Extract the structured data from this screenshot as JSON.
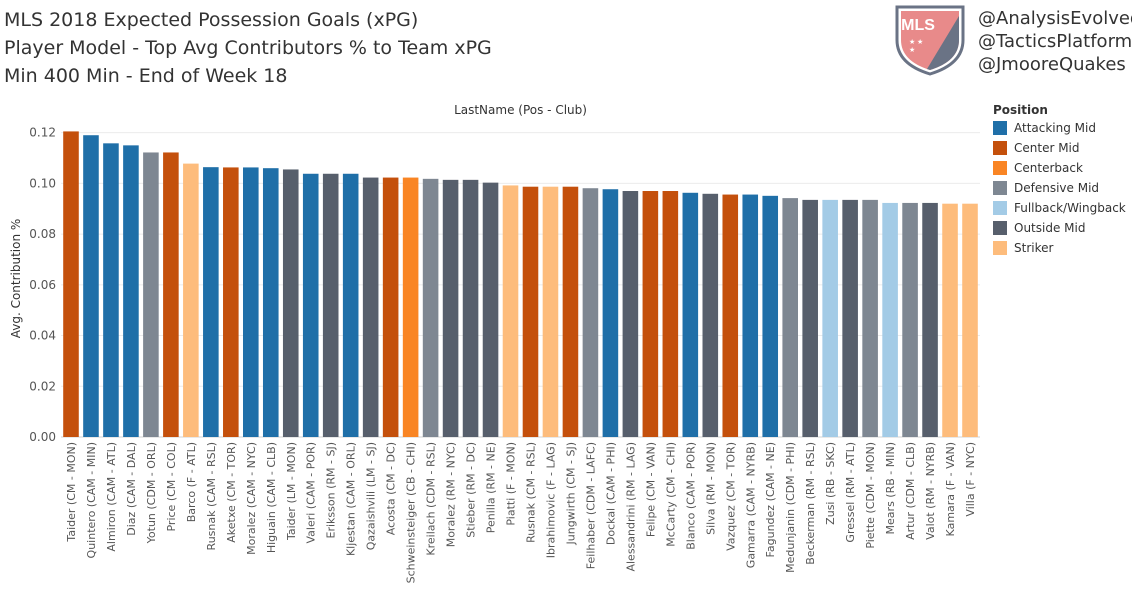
{
  "header": {
    "title_lines": [
      "MLS 2018 Expected Possession Goals (xPG)",
      "Player Model - Top Avg Contributors % to Team xPG",
      "Min 400 Min - End of Week 18"
    ],
    "handles": [
      "@AnalysisEvolved",
      "@TacticsPlatform",
      "@JmooreQuakes"
    ],
    "logo_text": "MLS"
  },
  "legend": {
    "title": "Position",
    "items": [
      {
        "label": "Attacking Mid",
        "color": "#1f6fa8"
      },
      {
        "label": "Center Mid",
        "color": "#c4500c"
      },
      {
        "label": "Centerback",
        "color": "#f98524"
      },
      {
        "label": "Defensive Mid",
        "color": "#7e8792"
      },
      {
        "label": "Fullback/Wingback",
        "color": "#a3cbe6"
      },
      {
        "label": "Outside Mid",
        "color": "#575f6c"
      },
      {
        "label": "Striker",
        "color": "#fdbc7c"
      }
    ]
  },
  "chart_data": {
    "type": "bar",
    "title": "LastName (Pos - Club)",
    "xlabel": "",
    "ylabel": "Avg. Contribution %",
    "ylim": [
      0,
      0.125
    ],
    "yticks": [
      "0.00",
      "0.02",
      "0.04",
      "0.06",
      "0.08",
      "0.10",
      "0.12"
    ],
    "categories": [
      "Taider (CM - MON)",
      "Quintero (CAM - MIN)",
      "Almiron (CAM - ATL)",
      "Diaz (CAM - DAL)",
      "Yotun (CDM - ORL)",
      "Price (CM - COL)",
      "Barco (F - ATL)",
      "Rusnak (CAM - RSL)",
      "Aketxe (CM - TOR)",
      "Moralez (CAM - NYC)",
      "Higuain (CAM - CLB)",
      "Taider (LM - MON)",
      "Valeri (CAM - POR)",
      "Eriksson (RM - SJ)",
      "Kljestan (CAM - ORL)",
      "Qazaishvili (LM - SJ)",
      "Acosta (CM - DC)",
      "Schweinsteiger (CB - CHI)",
      "Kreilach (CDM - RSL)",
      "Moralez (RM - NYC)",
      "Stieber (RM - DC)",
      "Penilla (RM - NE)",
      "Piatti (F - MON)",
      "Rusnak (CM - RSL)",
      "Ibrahimovic (F - LAG)",
      "Jungwirth (CM - SJ)",
      "Feilhaber (CDM - LAFC)",
      "Dockal (CAM - PHI)",
      "Alessandrini (RM - LAG)",
      "Felipe (CM - VAN)",
      "McCarty (CM - CHI)",
      "Blanco (CAM - POR)",
      "Silva (RM - MON)",
      "Vazquez (CM - TOR)",
      "Gamarra (CAM - NYRB)",
      "Fagundez (CAM - NE)",
      "Medunjanin (CDM - PHI)",
      "Beckerman (RM - RSL)",
      "Zusi (RB - SKC)",
      "Gressel (RM - ATL)",
      "Piette (CDM - MON)",
      "Mears (RB - MIN)",
      "Artur (CDM - CLB)",
      "Valot (RM - NYRB)",
      "Kamara (F - VAN)",
      "Villa (F - NYC)"
    ],
    "values": [
      0.1205,
      0.119,
      0.1158,
      0.115,
      0.1122,
      0.1122,
      0.1078,
      0.1064,
      0.1063,
      0.1063,
      0.106,
      0.1055,
      0.1038,
      0.1038,
      0.1038,
      0.1023,
      0.1023,
      0.1023,
      0.1018,
      0.1014,
      0.1014,
      0.1003,
      0.0992,
      0.0987,
      0.0987,
      0.0987,
      0.0981,
      0.0977,
      0.097,
      0.097,
      0.097,
      0.0963,
      0.0959,
      0.0956,
      0.0956,
      0.0951,
      0.0942,
      0.0935,
      0.0935,
      0.0935,
      0.0935,
      0.0923,
      0.0923,
      0.0923,
      0.092,
      0.092
    ],
    "positions": [
      "Center Mid",
      "Attacking Mid",
      "Attacking Mid",
      "Attacking Mid",
      "Defensive Mid",
      "Center Mid",
      "Striker",
      "Attacking Mid",
      "Center Mid",
      "Attacking Mid",
      "Attacking Mid",
      "Outside Mid",
      "Attacking Mid",
      "Outside Mid",
      "Attacking Mid",
      "Outside Mid",
      "Center Mid",
      "Centerback",
      "Defensive Mid",
      "Outside Mid",
      "Outside Mid",
      "Outside Mid",
      "Striker",
      "Center Mid",
      "Striker",
      "Center Mid",
      "Defensive Mid",
      "Attacking Mid",
      "Outside Mid",
      "Center Mid",
      "Center Mid",
      "Attacking Mid",
      "Outside Mid",
      "Center Mid",
      "Attacking Mid",
      "Attacking Mid",
      "Defensive Mid",
      "Outside Mid",
      "Fullback/Wingback",
      "Outside Mid",
      "Defensive Mid",
      "Fullback/Wingback",
      "Defensive Mid",
      "Outside Mid",
      "Striker",
      "Striker"
    ],
    "legend_position": "right",
    "grid": true
  }
}
